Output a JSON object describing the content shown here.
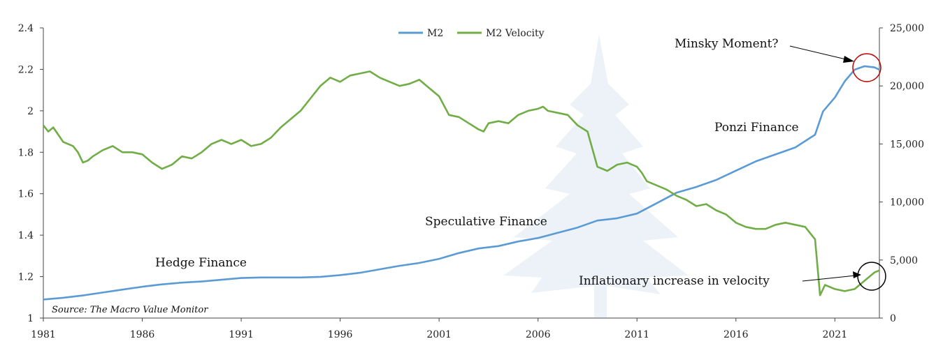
{
  "chart_data": {
    "type": "line",
    "title": "",
    "xlabel": "",
    "ylabel_left": "",
    "ylabel_right": "",
    "x_range": [
      1981,
      2023.25
    ],
    "x_ticks": [
      "1981",
      "1986",
      "1991",
      "1996",
      "2001",
      "2006",
      "2011",
      "2016",
      "2021"
    ],
    "y_left_range": [
      1,
      2.4
    ],
    "y_left_ticks": [
      "1",
      "1.2",
      "1.4",
      "1.6",
      "1.8",
      "2",
      "2.2",
      "2.4"
    ],
    "y_right_range": [
      0,
      25000
    ],
    "y_right_ticks": [
      "0",
      "5,000",
      "10,000",
      "15,000",
      "20,000",
      "25,000"
    ],
    "grid": false,
    "legend_position": "top-center",
    "colors": {
      "m2": "#5b9bd5",
      "velocity": "#70ad47",
      "circle_top": "#c00000",
      "circle_bottom": "#000000",
      "tree": "#dde8f1"
    },
    "series": [
      {
        "name": "M2",
        "axis": "right",
        "points": [
          [
            1981,
            1600
          ],
          [
            1982,
            1750
          ],
          [
            1983,
            1950
          ],
          [
            1984,
            2200
          ],
          [
            1985,
            2450
          ],
          [
            1986,
            2700
          ],
          [
            1987,
            2900
          ],
          [
            1988,
            3050
          ],
          [
            1989,
            3150
          ],
          [
            1990,
            3300
          ],
          [
            1991,
            3450
          ],
          [
            1992,
            3500
          ],
          [
            1993,
            3500
          ],
          [
            1994,
            3500
          ],
          [
            1995,
            3550
          ],
          [
            1996,
            3700
          ],
          [
            1997,
            3900
          ],
          [
            1998,
            4200
          ],
          [
            1999,
            4500
          ],
          [
            2000,
            4750
          ],
          [
            2001,
            5100
          ],
          [
            2002,
            5600
          ],
          [
            2003,
            6000
          ],
          [
            2004,
            6200
          ],
          [
            2005,
            6600
          ],
          [
            2006,
            6900
          ],
          [
            2007,
            7350
          ],
          [
            2008,
            7800
          ],
          [
            2009,
            8400
          ],
          [
            2010,
            8600
          ],
          [
            2011,
            9000
          ],
          [
            2012,
            9900
          ],
          [
            2013,
            10800
          ],
          [
            2014,
            11300
          ],
          [
            2015,
            11900
          ],
          [
            2016,
            12700
          ],
          [
            2017,
            13500
          ],
          [
            2018,
            14100
          ],
          [
            2019,
            14700
          ],
          [
            2020,
            15800
          ],
          [
            2020.4,
            17800
          ],
          [
            2021,
            19000
          ],
          [
            2021.5,
            20400
          ],
          [
            2022,
            21400
          ],
          [
            2022.5,
            21700
          ],
          [
            2023,
            21600
          ],
          [
            2023.25,
            21400
          ]
        ]
      },
      {
        "name": "M2 Velocity",
        "axis": "left",
        "points": [
          [
            1981,
            1.93
          ],
          [
            1981.25,
            1.9
          ],
          [
            1981.5,
            1.92
          ],
          [
            1982,
            1.85
          ],
          [
            1982.5,
            1.83
          ],
          [
            1982.75,
            1.8
          ],
          [
            1983,
            1.75
          ],
          [
            1983.25,
            1.76
          ],
          [
            1983.5,
            1.78
          ],
          [
            1984,
            1.81
          ],
          [
            1984.5,
            1.83
          ],
          [
            1985,
            1.8
          ],
          [
            1985.5,
            1.8
          ],
          [
            1986,
            1.79
          ],
          [
            1986.5,
            1.75
          ],
          [
            1987,
            1.72
          ],
          [
            1987.5,
            1.74
          ],
          [
            1988,
            1.78
          ],
          [
            1988.5,
            1.77
          ],
          [
            1989,
            1.8
          ],
          [
            1989.5,
            1.84
          ],
          [
            1990,
            1.86
          ],
          [
            1990.5,
            1.84
          ],
          [
            1991,
            1.86
          ],
          [
            1991.5,
            1.83
          ],
          [
            1992,
            1.84
          ],
          [
            1992.5,
            1.87
          ],
          [
            1993,
            1.92
          ],
          [
            1993.5,
            1.96
          ],
          [
            1994,
            2.0
          ],
          [
            1994.5,
            2.06
          ],
          [
            1995,
            2.12
          ],
          [
            1995.5,
            2.16
          ],
          [
            1996,
            2.14
          ],
          [
            1996.5,
            2.17
          ],
          [
            1997,
            2.18
          ],
          [
            1997.5,
            2.19
          ],
          [
            1998,
            2.16
          ],
          [
            1998.5,
            2.14
          ],
          [
            1999,
            2.12
          ],
          [
            1999.5,
            2.13
          ],
          [
            2000,
            2.15
          ],
          [
            2000.5,
            2.11
          ],
          [
            2001,
            2.07
          ],
          [
            2001.5,
            1.98
          ],
          [
            2002,
            1.97
          ],
          [
            2002.5,
            1.94
          ],
          [
            2003,
            1.91
          ],
          [
            2003.25,
            1.9
          ],
          [
            2003.5,
            1.94
          ],
          [
            2004,
            1.95
          ],
          [
            2004.5,
            1.94
          ],
          [
            2005,
            1.98
          ],
          [
            2005.5,
            2.0
          ],
          [
            2006,
            2.01
          ],
          [
            2006.25,
            2.02
          ],
          [
            2006.5,
            2.0
          ],
          [
            2007,
            1.99
          ],
          [
            2007.5,
            1.98
          ],
          [
            2008,
            1.93
          ],
          [
            2008.5,
            1.9
          ],
          [
            2009,
            1.73
          ],
          [
            2009.5,
            1.71
          ],
          [
            2010,
            1.74
          ],
          [
            2010.5,
            1.75
          ],
          [
            2011,
            1.73
          ],
          [
            2011.25,
            1.7
          ],
          [
            2011.5,
            1.66
          ],
          [
            2012,
            1.64
          ],
          [
            2012.5,
            1.62
          ],
          [
            2013,
            1.59
          ],
          [
            2013.5,
            1.57
          ],
          [
            2014,
            1.54
          ],
          [
            2014.5,
            1.55
          ],
          [
            2015,
            1.52
          ],
          [
            2015.5,
            1.5
          ],
          [
            2016,
            1.46
          ],
          [
            2016.5,
            1.44
          ],
          [
            2017,
            1.43
          ],
          [
            2017.5,
            1.43
          ],
          [
            2018,
            1.45
          ],
          [
            2018.5,
            1.46
          ],
          [
            2019,
            1.45
          ],
          [
            2019.5,
            1.44
          ],
          [
            2020,
            1.38
          ],
          [
            2020.25,
            1.11
          ],
          [
            2020.5,
            1.16
          ],
          [
            2021,
            1.14
          ],
          [
            2021.5,
            1.13
          ],
          [
            2022,
            1.14
          ],
          [
            2022.5,
            1.18
          ],
          [
            2023,
            1.22
          ],
          [
            2023.25,
            1.23
          ]
        ]
      }
    ],
    "annotations": [
      {
        "id": "minsky",
        "text": "Minsky Moment?"
      },
      {
        "id": "ponzi",
        "text": "Ponzi Finance"
      },
      {
        "id": "speculative",
        "text": "Speculative Finance"
      },
      {
        "id": "hedge",
        "text": "Hedge Finance"
      },
      {
        "id": "inflationary",
        "text": "Inflationary increase in velocity"
      }
    ],
    "source": "Source: The Macro Value Monitor"
  }
}
